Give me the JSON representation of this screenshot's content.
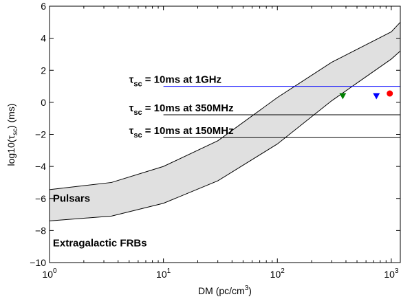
{
  "chart_data": {
    "type": "line",
    "xscale": "log",
    "xlim": [
      1,
      1200
    ],
    "ylim": [
      -10,
      6
    ],
    "xticks": [
      1,
      10,
      100,
      1000
    ],
    "xtick_labels": [
      {
        "base": "10",
        "exp": "0"
      },
      {
        "base": "10",
        "exp": "1"
      },
      {
        "base": "10",
        "exp": "2"
      },
      {
        "base": "10",
        "exp": "3"
      }
    ],
    "yticks": [
      -10,
      -8,
      -6,
      -4,
      -2,
      0,
      2,
      4,
      6
    ],
    "ytick_labels": [
      "−10",
      "−8",
      "−6",
      "−4",
      "−2",
      "0",
      "2",
      "4",
      "6"
    ],
    "xlabel": {
      "text": "DM (pc/cm",
      "sup": "3",
      "tail": ")"
    },
    "ylabel": {
      "text": "log10(τ",
      "sub": "sc",
      "tail": ") (ms)"
    },
    "grid": false,
    "band": {
      "upper": {
        "x": [
          1,
          3.5,
          10,
          30,
          100,
          300,
          1000,
          1200
        ],
        "y": [
          -5.45,
          -5.0,
          -4.0,
          -2.4,
          0.3,
          2.5,
          4.4,
          5.0
        ]
      },
      "lower": {
        "x": [
          1,
          3.5,
          10,
          30,
          100,
          300,
          1000,
          1200
        ],
        "y": [
          -7.4,
          -7.1,
          -6.3,
          -4.9,
          -2.6,
          0.1,
          2.7,
          3.2
        ]
      },
      "fill": "#e0e0e0",
      "stroke": "#000000"
    },
    "hlines": [
      {
        "y": 1.0,
        "x_start": 10,
        "x_end": 1200,
        "color": "#0000ff",
        "label": {
          "sym": "τ",
          "sub": "sc",
          "rest": " = 10ms at 1GHz"
        }
      },
      {
        "y": -0.78,
        "x_start": 10,
        "x_end": 1200,
        "color": "#000000",
        "label": {
          "sym": "τ",
          "sub": "sc",
          "rest": " = 10ms at 350MHz"
        }
      },
      {
        "y": -2.2,
        "x_start": 10,
        "x_end": 1200,
        "color": "#000000",
        "label": {
          "sym": "τ",
          "sub": "sc",
          "rest": " = 10ms at 150MHz"
        }
      }
    ],
    "points": [
      {
        "x": 375,
        "y": 0.4,
        "marker": "triangle-down",
        "color": "#008000"
      },
      {
        "x": 740,
        "y": 0.4,
        "marker": "triangle-down",
        "color": "#0000ff"
      },
      {
        "x": 970,
        "y": 0.55,
        "marker": "circle",
        "color": "#ff0000"
      }
    ],
    "annotations": [
      {
        "text": "Pulsars",
        "x": 1.07,
        "y": -6.2
      },
      {
        "text": "Extragalactic FRBs",
        "x": 1.07,
        "y": -9.0
      }
    ]
  }
}
